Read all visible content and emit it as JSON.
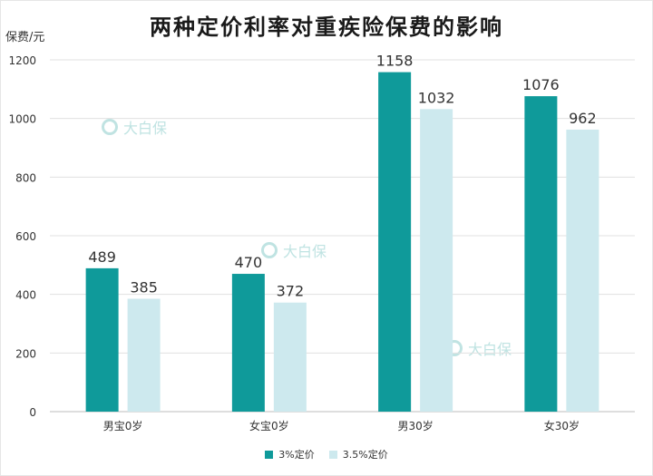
{
  "title": "两种定价利率对重疾险保费的影响",
  "unit_label": "保费/元",
  "watermark_text": "大白保",
  "colors": {
    "series1": "#0f9a9a",
    "series2": "#cde9ee",
    "grid": "#e0e0e0",
    "axis_text": "#333333"
  },
  "chart_data": {
    "type": "bar",
    "categories": [
      "男宝0岁",
      "女宝0岁",
      "男30岁",
      "女30岁"
    ],
    "series": [
      {
        "name": "3%定价",
        "values": [
          489,
          470,
          1158,
          1076
        ]
      },
      {
        "name": "3.5%定价",
        "values": [
          385,
          372,
          1032,
          962
        ]
      }
    ],
    "ylim": [
      0,
      1200
    ],
    "yticks": [
      0,
      200,
      400,
      600,
      800,
      1000,
      1200
    ],
    "grid": true,
    "legend_position": "bottom-center"
  }
}
